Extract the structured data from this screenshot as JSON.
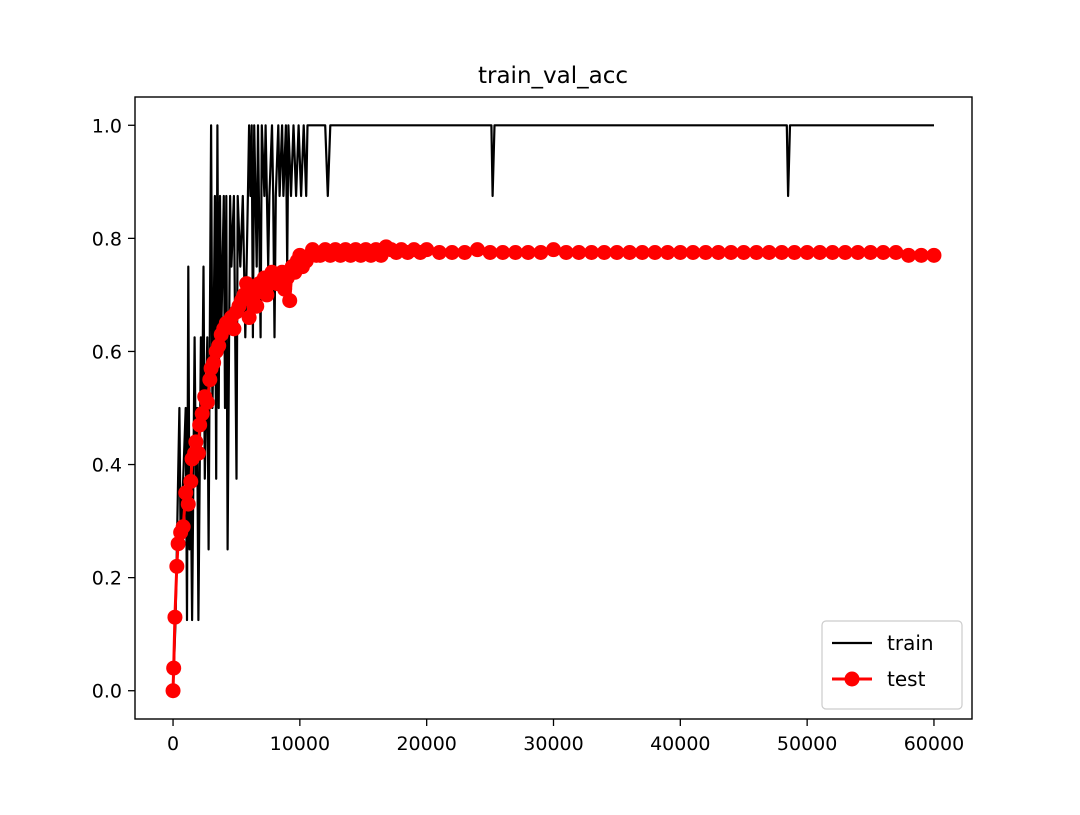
{
  "chart_data": {
    "type": "line",
    "title": "train_val_acc",
    "xlabel": "",
    "ylabel": "",
    "xlim": [
      -3000,
      63000
    ],
    "ylim": [
      -0.05,
      1.05
    ],
    "x_ticks": [
      0,
      10000,
      20000,
      30000,
      40000,
      50000,
      60000
    ],
    "x_tick_labels": [
      "0",
      "10000",
      "20000",
      "30000",
      "40000",
      "50000",
      "60000"
    ],
    "y_ticks": [
      0.0,
      0.2,
      0.4,
      0.6,
      0.8,
      1.0
    ],
    "y_tick_labels": [
      "0.0",
      "0.2",
      "0.4",
      "0.6",
      "0.8",
      "1.0"
    ],
    "grid": false,
    "legend_position": "lower-right",
    "series": [
      {
        "name": "train",
        "color": "#000000",
        "marker": "none",
        "points": [
          [
            0,
            0.0
          ],
          [
            200,
            0.125
          ],
          [
            400,
            0.375
          ],
          [
            500,
            0.5
          ],
          [
            600,
            0.25
          ],
          [
            800,
            0.375
          ],
          [
            1000,
            0.5
          ],
          [
            1100,
            0.125
          ],
          [
            1200,
            0.75
          ],
          [
            1300,
            0.25
          ],
          [
            1400,
            0.375
          ],
          [
            1500,
            0.125
          ],
          [
            1700,
            0.625
          ],
          [
            1800,
            0.375
          ],
          [
            1900,
            0.5
          ],
          [
            2000,
            0.125
          ],
          [
            2200,
            0.625
          ],
          [
            2300,
            0.5
          ],
          [
            2400,
            0.75
          ],
          [
            2500,
            0.375
          ],
          [
            2700,
            0.625
          ],
          [
            2800,
            0.25
          ],
          [
            2900,
            0.625
          ],
          [
            3000,
            1.0
          ],
          [
            3100,
            0.5
          ],
          [
            3200,
            0.625
          ],
          [
            3300,
            0.875
          ],
          [
            3400,
            0.375
          ],
          [
            3500,
            1.0
          ],
          [
            3600,
            0.5
          ],
          [
            3700,
            0.875
          ],
          [
            3800,
            0.625
          ],
          [
            3900,
            0.75
          ],
          [
            4000,
            0.875
          ],
          [
            4100,
            0.5
          ],
          [
            4200,
            0.875
          ],
          [
            4300,
            0.25
          ],
          [
            4500,
            0.875
          ],
          [
            4600,
            0.75
          ],
          [
            4800,
            0.875
          ],
          [
            4900,
            0.625
          ],
          [
            5000,
            0.375
          ],
          [
            5100,
            0.875
          ],
          [
            5300,
            0.75
          ],
          [
            5500,
            0.875
          ],
          [
            5700,
            0.625
          ],
          [
            5900,
            0.875
          ],
          [
            6000,
            1.0
          ],
          [
            6100,
            0.875
          ],
          [
            6200,
            1.0
          ],
          [
            6300,
            0.625
          ],
          [
            6400,
            1.0
          ],
          [
            6500,
            0.875
          ],
          [
            6600,
            0.75
          ],
          [
            6700,
            1.0
          ],
          [
            6900,
            0.625
          ],
          [
            7000,
            1.0
          ],
          [
            7200,
            0.875
          ],
          [
            7300,
            1.0
          ],
          [
            7500,
            0.75
          ],
          [
            7600,
            0.875
          ],
          [
            7800,
            1.0
          ],
          [
            7900,
            0.875
          ],
          [
            8000,
            0.625
          ],
          [
            8100,
            0.875
          ],
          [
            8300,
            1.0
          ],
          [
            8400,
            0.875
          ],
          [
            8600,
            1.0
          ],
          [
            8700,
            0.875
          ],
          [
            8900,
            1.0
          ],
          [
            9000,
            0.75
          ],
          [
            9100,
            1.0
          ],
          [
            9300,
            0.875
          ],
          [
            9500,
            1.0
          ],
          [
            9700,
            0.875
          ],
          [
            9900,
            1.0
          ],
          [
            10100,
            0.875
          ],
          [
            10300,
            1.0
          ],
          [
            10500,
            0.875
          ],
          [
            10600,
            1.0
          ],
          [
            12000,
            1.0
          ],
          [
            12200,
            0.875
          ],
          [
            12400,
            1.0
          ],
          [
            25100,
            1.0
          ],
          [
            25200,
            0.875
          ],
          [
            25350,
            1.0
          ],
          [
            48400,
            1.0
          ],
          [
            48500,
            0.875
          ],
          [
            48650,
            1.0
          ],
          [
            60000,
            1.0
          ]
        ]
      },
      {
        "name": "test",
        "color": "#ff0000",
        "marker": "circle",
        "points": [
          [
            0,
            0.0
          ],
          [
            50,
            0.04
          ],
          [
            150,
            0.13
          ],
          [
            300,
            0.22
          ],
          [
            400,
            0.26
          ],
          [
            600,
            0.28
          ],
          [
            800,
            0.29
          ],
          [
            1000,
            0.35
          ],
          [
            1200,
            0.33
          ],
          [
            1400,
            0.37
          ],
          [
            1500,
            0.41
          ],
          [
            1700,
            0.42
          ],
          [
            1800,
            0.44
          ],
          [
            2000,
            0.42
          ],
          [
            2100,
            0.47
          ],
          [
            2300,
            0.49
          ],
          [
            2500,
            0.52
          ],
          [
            2700,
            0.51
          ],
          [
            2900,
            0.55
          ],
          [
            3000,
            0.57
          ],
          [
            3200,
            0.58
          ],
          [
            3400,
            0.6
          ],
          [
            3600,
            0.61
          ],
          [
            3800,
            0.63
          ],
          [
            4000,
            0.64
          ],
          [
            4200,
            0.65
          ],
          [
            4400,
            0.65
          ],
          [
            4600,
            0.66
          ],
          [
            4800,
            0.64
          ],
          [
            5000,
            0.67
          ],
          [
            5200,
            0.68
          ],
          [
            5400,
            0.69
          ],
          [
            5600,
            0.7
          ],
          [
            5800,
            0.72
          ],
          [
            6000,
            0.66
          ],
          [
            6200,
            0.7
          ],
          [
            6400,
            0.7
          ],
          [
            6600,
            0.68
          ],
          [
            6800,
            0.72
          ],
          [
            7000,
            0.71
          ],
          [
            7200,
            0.73
          ],
          [
            7400,
            0.7
          ],
          [
            7600,
            0.72
          ],
          [
            7800,
            0.74
          ],
          [
            8000,
            0.73
          ],
          [
            8200,
            0.72
          ],
          [
            8400,
            0.73
          ],
          [
            8600,
            0.74
          ],
          [
            8800,
            0.71
          ],
          [
            9000,
            0.73
          ],
          [
            9200,
            0.69
          ],
          [
            9400,
            0.75
          ],
          [
            9600,
            0.74
          ],
          [
            9800,
            0.76
          ],
          [
            10000,
            0.77
          ],
          [
            10200,
            0.75
          ],
          [
            10500,
            0.76
          ],
          [
            10800,
            0.77
          ],
          [
            11000,
            0.78
          ],
          [
            11300,
            0.77
          ],
          [
            11600,
            0.77
          ],
          [
            12000,
            0.78
          ],
          [
            12400,
            0.77
          ],
          [
            12800,
            0.78
          ],
          [
            13200,
            0.77
          ],
          [
            13600,
            0.78
          ],
          [
            14000,
            0.77
          ],
          [
            14400,
            0.78
          ],
          [
            14800,
            0.77
          ],
          [
            15200,
            0.78
          ],
          [
            15600,
            0.77
          ],
          [
            16000,
            0.78
          ],
          [
            16400,
            0.77
          ],
          [
            16800,
            0.785
          ],
          [
            17200,
            0.78
          ],
          [
            17600,
            0.775
          ],
          [
            18000,
            0.78
          ],
          [
            18500,
            0.775
          ],
          [
            19000,
            0.78
          ],
          [
            19500,
            0.775
          ],
          [
            20000,
            0.78
          ],
          [
            21000,
            0.775
          ],
          [
            22000,
            0.775
          ],
          [
            23000,
            0.775
          ],
          [
            24000,
            0.78
          ],
          [
            25000,
            0.775
          ],
          [
            26000,
            0.775
          ],
          [
            27000,
            0.775
          ],
          [
            28000,
            0.775
          ],
          [
            29000,
            0.775
          ],
          [
            30000,
            0.78
          ],
          [
            31000,
            0.775
          ],
          [
            32000,
            0.775
          ],
          [
            33000,
            0.775
          ],
          [
            34000,
            0.775
          ],
          [
            35000,
            0.775
          ],
          [
            36000,
            0.775
          ],
          [
            37000,
            0.775
          ],
          [
            38000,
            0.775
          ],
          [
            39000,
            0.775
          ],
          [
            40000,
            0.775
          ],
          [
            41000,
            0.775
          ],
          [
            42000,
            0.775
          ],
          [
            43000,
            0.775
          ],
          [
            44000,
            0.775
          ],
          [
            45000,
            0.775
          ],
          [
            46000,
            0.775
          ],
          [
            47000,
            0.775
          ],
          [
            48000,
            0.775
          ],
          [
            49000,
            0.775
          ],
          [
            50000,
            0.775
          ],
          [
            51000,
            0.775
          ],
          [
            52000,
            0.775
          ],
          [
            53000,
            0.775
          ],
          [
            54000,
            0.775
          ],
          [
            55000,
            0.775
          ],
          [
            56000,
            0.775
          ],
          [
            57000,
            0.775
          ],
          [
            58000,
            0.77
          ],
          [
            59000,
            0.77
          ],
          [
            60000,
            0.77
          ]
        ]
      }
    ]
  }
}
